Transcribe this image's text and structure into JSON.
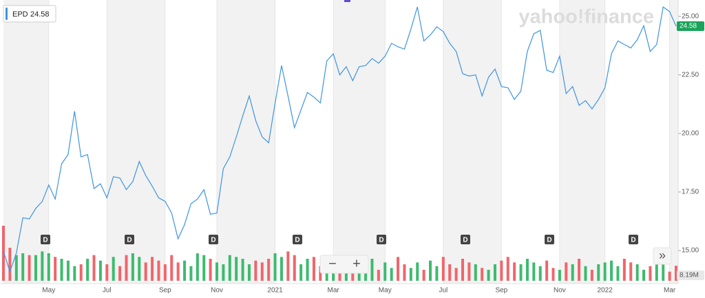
{
  "chart_data": {
    "type": "line",
    "logo": "yahoo!finance",
    "categories": [
      null,
      null,
      null,
      null,
      null,
      null,
      null,
      "May",
      null,
      null,
      null,
      null,
      null,
      null,
      null,
      null,
      "Jul",
      null,
      null,
      null,
      null,
      null,
      null,
      null,
      null,
      "Sep",
      null,
      null,
      null,
      null,
      null,
      null,
      null,
      "Nov",
      null,
      null,
      null,
      null,
      null,
      null,
      null,
      null,
      "2021",
      null,
      null,
      null,
      null,
      null,
      null,
      null,
      null,
      "Mar",
      null,
      null,
      null,
      null,
      null,
      null,
      null,
      "May",
      null,
      null,
      null,
      null,
      null,
      null,
      null,
      null,
      "Jul",
      null,
      null,
      null,
      null,
      null,
      null,
      null,
      null,
      "Sep",
      null,
      null,
      null,
      null,
      null,
      null,
      null,
      null,
      "Nov",
      null,
      null,
      null,
      null,
      null,
      null,
      "2022",
      null,
      null,
      null,
      null,
      null,
      null,
      null,
      null,
      null,
      "Mar",
      null
    ],
    "series": [
      {
        "name": "EPD",
        "color": "#3d94e0",
        "current_price": 24.58,
        "values": [
          14.97,
          14.1,
          14.9,
          16.4,
          16.35,
          16.8,
          17.1,
          17.8,
          17.2,
          18.7,
          19.1,
          20.95,
          19.0,
          19.1,
          17.65,
          17.85,
          17.25,
          18.15,
          18.1,
          17.6,
          17.95,
          18.8,
          18.2,
          17.75,
          17.25,
          17.1,
          16.6,
          15.5,
          16.1,
          17.0,
          17.2,
          17.6,
          16.55,
          16.6,
          18.5,
          19.0,
          19.85,
          20.75,
          21.6,
          20.55,
          19.85,
          19.6,
          21.3,
          22.9,
          21.6,
          20.25,
          21.0,
          21.75,
          21.55,
          21.3,
          23.1,
          23.4,
          22.5,
          22.85,
          22.25,
          22.85,
          22.9,
          23.2,
          23.0,
          23.3,
          23.85,
          23.7,
          23.6,
          24.45,
          25.4,
          23.95,
          24.2,
          24.55,
          24.35,
          23.85,
          23.5,
          22.55,
          22.45,
          22.5,
          21.6,
          22.4,
          22.75,
          22.0,
          21.95,
          21.45,
          21.8,
          23.5,
          24.25,
          24.4,
          22.7,
          22.6,
          23.3,
          21.7,
          22.0,
          21.2,
          21.4,
          21.05,
          21.45,
          21.95,
          23.4,
          23.95,
          23.8,
          23.65,
          24.0,
          24.6,
          23.5,
          23.8,
          25.4,
          25.2,
          24.58
        ]
      },
      {
        "type": "bar",
        "axis": "y2",
        "up_color": "#3dbb6e",
        "down_color": "#f0656b",
        "values": [
          30,
          18,
          14,
          15,
          14,
          14,
          16,
          15,
          13,
          12,
          11,
          8,
          9,
          12,
          14,
          11,
          9,
          13,
          8,
          14,
          15,
          13,
          10,
          13,
          11,
          9,
          14,
          10,
          11,
          8,
          15,
          14,
          12,
          10,
          9,
          14,
          13,
          12,
          9,
          11,
          10,
          12,
          15,
          13,
          16,
          14,
          9,
          12,
          13,
          8,
          10,
          6,
          8,
          7,
          5,
          9,
          7,
          12,
          6,
          10,
          7,
          13,
          9,
          7,
          10,
          6,
          11,
          8,
          13,
          9,
          7,
          12,
          10,
          9,
          7,
          6,
          9,
          11,
          13,
          10,
          9,
          12,
          10,
          8,
          11,
          7,
          6,
          10,
          9,
          12,
          8,
          6,
          9,
          10,
          11,
          8,
          12,
          10,
          9,
          6,
          8,
          12,
          10,
          5,
          8.19
        ]
      }
    ],
    "current_volume_label": "8.19M",
    "ylim": [
      13.65,
      25.55
    ],
    "yticks": [
      {
        "value": 15,
        "label": "15.00"
      },
      {
        "value": 17.5,
        "label": "17.50"
      },
      {
        "value": 20,
        "label": "20.00"
      },
      {
        "value": 22.5,
        "label": "22.50"
      },
      {
        "value": 25,
        "label": "25.00"
      }
    ],
    "y2lim": [
      0,
      30
    ],
    "dividend_markers": [
      "D",
      "D",
      "D",
      "D",
      "D",
      "D",
      "D",
      "D"
    ],
    "controls": [
      "−",
      "+",
      "»"
    ]
  }
}
